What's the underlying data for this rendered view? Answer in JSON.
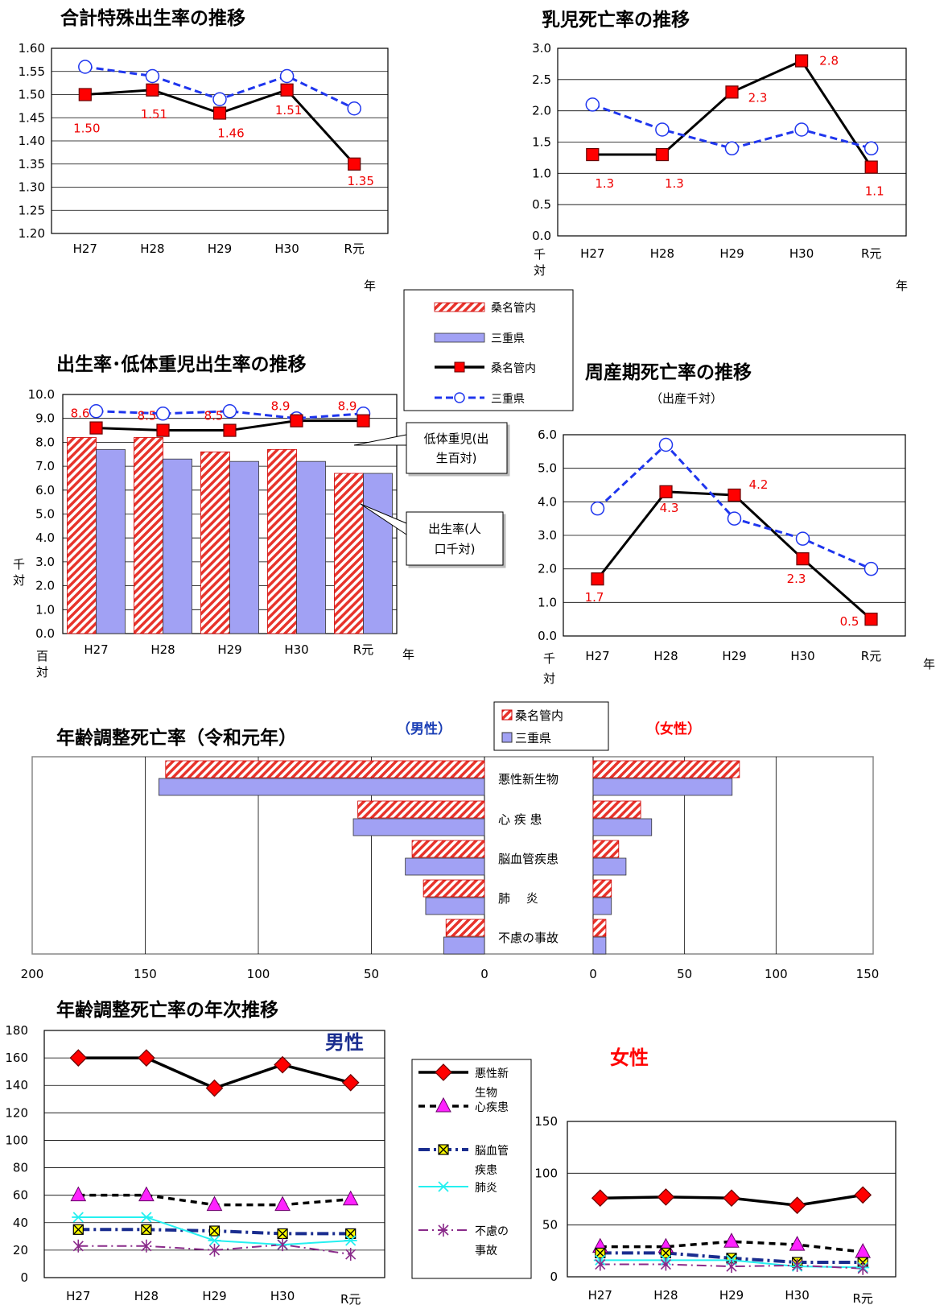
{
  "tfr": {
    "title": "合計特殊出生率の推移",
    "categories": [
      "H27",
      "H28",
      "H29",
      "H30",
      "R元"
    ],
    "xunit": "年",
    "yticks": [
      "1.60",
      "1.55",
      "1.50",
      "1.45",
      "1.40",
      "1.35",
      "1.30",
      "1.25",
      "1.20"
    ],
    "labels": [
      "1.50",
      "1.51",
      "1.46",
      "1.51",
      "1.35"
    ]
  },
  "infant": {
    "title": "乳児死亡率の推移",
    "categories": [
      "H27",
      "H28",
      "H29",
      "H30",
      "R元"
    ],
    "xunit": "年",
    "yunit": "千対",
    "yticks": [
      "3.0",
      "2.5",
      "2.0",
      "1.5",
      "1.0",
      "0.5",
      "0.0"
    ],
    "labels": [
      "1.3",
      "1.3",
      "2.3",
      "2.8",
      "1.1"
    ]
  },
  "legend1": {
    "items": [
      "桑名管内",
      "三重県",
      "桑名管内",
      "三重県"
    ]
  },
  "birth": {
    "title": "出生率･低体重児出生率の推移",
    "categories": [
      "H27",
      "H28",
      "H29",
      "H30",
      "R元"
    ],
    "xunit": "年",
    "yunit_left": "百対",
    "yunit_mid": "千対",
    "yticks": [
      "10.0",
      "9.0",
      "8.0",
      "7.0",
      "6.0",
      "5.0",
      "4.0",
      "3.0",
      "2.0",
      "1.0",
      "0.0"
    ],
    "labels": [
      "8.6",
      "8.5",
      "8.5",
      "8.9",
      "8.9"
    ],
    "callout_low": "低体重児(出生百対)",
    "callout_birth": "出生率(人口千対)"
  },
  "perinatal": {
    "title": "周産期死亡率の推移",
    "subtitle": "（出産千対）",
    "categories": [
      "H27",
      "H28",
      "H29",
      "H30",
      "R元"
    ],
    "xunit": "年",
    "yunit": "千対",
    "yticks": [
      "6.0",
      "5.0",
      "4.0",
      "3.0",
      "2.0",
      "1.0",
      "0.0"
    ],
    "labels": [
      "1.7",
      "4.3",
      "4.2",
      "2.3",
      "0.5"
    ]
  },
  "adr": {
    "title": "年齢調整死亡率（令和元年）",
    "male_label": "（男性）",
    "female_label": "（女性）",
    "legend": [
      "桑名管内",
      "三重県"
    ],
    "categories": [
      "悪性新生物",
      "心 疾 患",
      "脳血管疾患",
      "肺　 炎",
      "不慮の事故"
    ],
    "male_ticks": [
      "200",
      "150",
      "100",
      "50",
      "0"
    ],
    "female_ticks": [
      "0",
      "50",
      "100",
      "150"
    ]
  },
  "trend": {
    "title": "年齢調整死亡率の年次推移",
    "male_label": "男性",
    "female_label": "女性",
    "categories": [
      "H27",
      "H28",
      "H29",
      "H30",
      "R元"
    ],
    "male_yticks": [
      "180",
      "160",
      "140",
      "120",
      "100",
      "80",
      "60",
      "40",
      "20",
      "0"
    ],
    "female_yticks": [
      "150",
      "100",
      "50",
      "0"
    ],
    "legend": [
      "悪性新\n生物",
      "心疾患",
      "脳血管\n疾患",
      "肺炎",
      "不慮の\n事故"
    ]
  },
  "chart_data": [
    {
      "type": "line",
      "title": "合計特殊出生率の推移",
      "categories": [
        "H27",
        "H28",
        "H29",
        "H30",
        "R元"
      ],
      "series": [
        {
          "name": "桑名管内",
          "values": [
            1.5,
            1.51,
            1.46,
            1.51,
            1.35
          ]
        },
        {
          "name": "三重県",
          "values": [
            1.56,
            1.54,
            1.49,
            1.54,
            1.47
          ]
        }
      ],
      "ylim": [
        1.2,
        1.6
      ],
      "xlabel": "年"
    },
    {
      "type": "line",
      "title": "乳児死亡率の推移",
      "categories": [
        "H27",
        "H28",
        "H29",
        "H30",
        "R元"
      ],
      "series": [
        {
          "name": "桑名管内",
          "values": [
            1.3,
            1.3,
            2.3,
            2.8,
            1.1
          ]
        },
        {
          "name": "三重県",
          "values": [
            2.1,
            1.7,
            1.4,
            1.7,
            1.4
          ]
        }
      ],
      "ylim": [
        0,
        3.0
      ],
      "xlabel": "年",
      "ylabel": "千対"
    },
    {
      "type": "bar",
      "title": "出生率･低体重児出生率の推移",
      "categories": [
        "H27",
        "H28",
        "H29",
        "H30",
        "R元"
      ],
      "series": [
        {
          "name": "桑名管内",
          "values": [
            8.2,
            8.2,
            7.6,
            7.7,
            6.7
          ]
        },
        {
          "name": "三重県",
          "values": [
            7.7,
            7.3,
            7.2,
            7.2,
            6.7
          ]
        },
        {
          "name": "桑名管内",
          "values": [
            8.6,
            8.5,
            8.5,
            8.9,
            8.9
          ]
        },
        {
          "name": "三重県",
          "values": [
            9.3,
            9.2,
            9.3,
            9.0,
            9.2
          ]
        }
      ],
      "ylim": [
        0,
        10.0
      ]
    },
    {
      "type": "line",
      "title": "周産期死亡率の推移",
      "subtitle": "（出産千対）",
      "categories": [
        "H27",
        "H28",
        "H29",
        "H30",
        "R元"
      ],
      "series": [
        {
          "name": "桑名管内",
          "values": [
            1.7,
            4.3,
            4.2,
            2.3,
            0.5
          ]
        },
        {
          "name": "三重県",
          "values": [
            3.8,
            5.7,
            3.5,
            2.9,
            2.0
          ]
        }
      ],
      "ylim": [
        0,
        6.0
      ]
    },
    {
      "type": "bar",
      "title": "年齢調整死亡率（令和元年）",
      "categories": [
        "悪性新生物",
        "心 疾 患",
        "脳血管疾患",
        "肺　 炎",
        "不慮の事故"
      ],
      "series": [
        {
          "name": "桑名管内",
          "values": [
            141,
            56,
            32,
            27,
            17
          ],
          "group": "（男性）"
        },
        {
          "name": "三重県",
          "values": [
            144,
            58,
            35,
            26,
            18
          ],
          "group": "（男性）"
        },
        {
          "name": "桑名管内",
          "values": [
            80,
            26,
            14,
            10,
            7
          ],
          "group": "（女性）"
        },
        {
          "name": "三重県",
          "values": [
            76,
            32,
            18,
            10,
            7
          ],
          "group": "（女性）"
        }
      ]
    },
    {
      "type": "line",
      "title": "年齢調整死亡率の年次推移",
      "categories": [
        "H27",
        "H28",
        "H29",
        "H30",
        "R元"
      ],
      "series": [
        {
          "name": "悪性新生物",
          "values": [
            160,
            160,
            138,
            155,
            142
          ],
          "group": "男性"
        },
        {
          "name": "心疾患",
          "values": [
            60,
            60,
            53,
            53,
            57
          ],
          "group": "男性"
        },
        {
          "name": "脳血管疾患",
          "values": [
            35,
            35,
            34,
            32,
            32
          ],
          "group": "男性"
        },
        {
          "name": "肺炎",
          "values": [
            44,
            44,
            27,
            24,
            27
          ],
          "group": "男性"
        },
        {
          "name": "不慮の事故",
          "values": [
            23,
            23,
            20,
            24,
            17
          ],
          "group": "男性"
        },
        {
          "name": "悪性新生物",
          "values": [
            76,
            77,
            76,
            69,
            79
          ],
          "group": "女性"
        },
        {
          "name": "心疾患",
          "values": [
            29,
            29,
            34,
            31,
            24
          ],
          "group": "女性"
        },
        {
          "name": "脳血管疾患",
          "values": [
            23,
            23,
            18,
            14,
            14
          ],
          "group": "女性"
        },
        {
          "name": "肺炎",
          "values": [
            16,
            16,
            16,
            10,
            9
          ],
          "group": "女性"
        },
        {
          "name": "不慮の事故",
          "values": [
            12,
            12,
            10,
            11,
            8
          ],
          "group": "女性"
        }
      ],
      "ylim": [
        0,
        180
      ]
    }
  ]
}
